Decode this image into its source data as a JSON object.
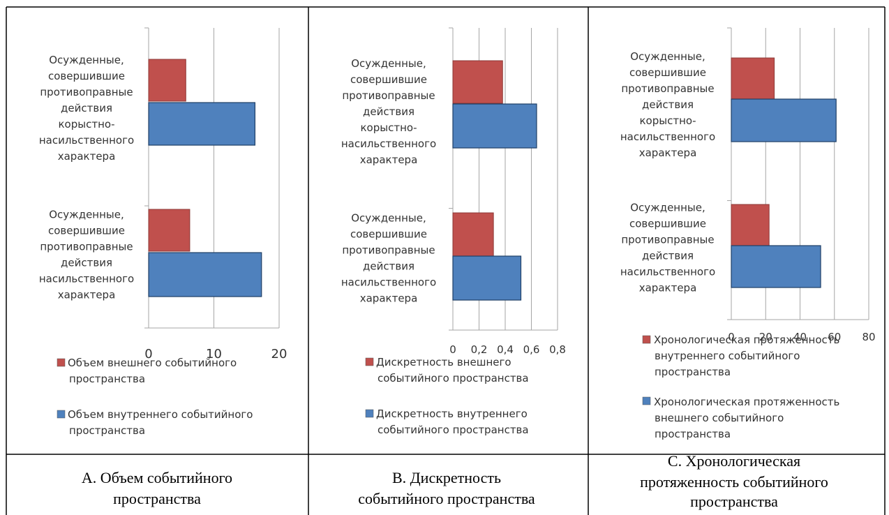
{
  "chart_data": [
    {
      "type": "bar",
      "orientation": "horizontal",
      "categories": [
        [
          "Осужденные,",
          "совершившие",
          "противоправные",
          "действия",
          "корыстно-",
          "насильственного",
          "характера"
        ],
        [
          "Осужденные,",
          "совершившие",
          "противоправные",
          "действия",
          "насильственного",
          "характера"
        ]
      ],
      "series": [
        {
          "name": [
            "Объем внешнего событийного",
            "пространства"
          ],
          "color": "#c0504d",
          "values": [
            5.7,
            6.3
          ]
        },
        {
          "name": [
            "Объем внутреннего событийного",
            "пространства"
          ],
          "color": "#4f81bd",
          "values": [
            16.3,
            17.3
          ]
        }
      ],
      "xticks": [
        "0",
        "10",
        "20"
      ],
      "xlim": [
        0,
        20
      ],
      "grid": true,
      "legend_position": "bottom",
      "caption": [
        "А. Объем событийного",
        "пространства"
      ]
    },
    {
      "type": "bar",
      "orientation": "horizontal",
      "categories": [
        [
          "Осужденные,",
          "совершившие",
          "противоправные",
          "действия",
          "корыстно-",
          "насильственного",
          "характера"
        ],
        [
          "Осужденные,",
          "совершившие",
          "противоправные",
          "действия",
          "насильственного",
          "характера"
        ]
      ],
      "series": [
        {
          "name": [
            "Дискретность внешнего",
            "событийного пространства"
          ],
          "color": "#c0504d",
          "values": [
            0.38,
            0.31
          ]
        },
        {
          "name": [
            "Дискретность внутреннего",
            "событийного пространства"
          ],
          "color": "#4f81bd",
          "values": [
            0.64,
            0.52
          ]
        }
      ],
      "xticks": [
        "0",
        "0,2",
        "0,4",
        "0,6",
        "0,8"
      ],
      "xlim": [
        0,
        0.8
      ],
      "grid": true,
      "legend_position": "bottom",
      "caption": [
        "В. Дискретность",
        "событийного пространства"
      ]
    },
    {
      "type": "bar",
      "orientation": "horizontal",
      "categories": [
        [
          "Осужденные,",
          "совершившие",
          "противоправные",
          "действия",
          "корыстно-",
          "насильственного",
          "характера"
        ],
        [
          "Осужденные,",
          "совершившие",
          "противоправные",
          "действия",
          "насильственного",
          "характера"
        ]
      ],
      "series": [
        {
          "name": [
            "Хронологическая протяженность",
            "внутреннего событийного",
            "пространства"
          ],
          "color": "#c0504d",
          "values": [
            25,
            22
          ]
        },
        {
          "name": [
            "Хронологическая протяженность",
            "внешнего событийного",
            "пространства"
          ],
          "color": "#4f81bd",
          "values": [
            61,
            52
          ]
        }
      ],
      "xticks": [
        "0",
        "20",
        "40",
        "60",
        "80"
      ],
      "xlim": [
        0,
        80
      ],
      "grid": true,
      "legend_position": "bottom",
      "caption": [
        "С. Хронологическая",
        "протяженность событийного",
        "пространства"
      ]
    }
  ]
}
